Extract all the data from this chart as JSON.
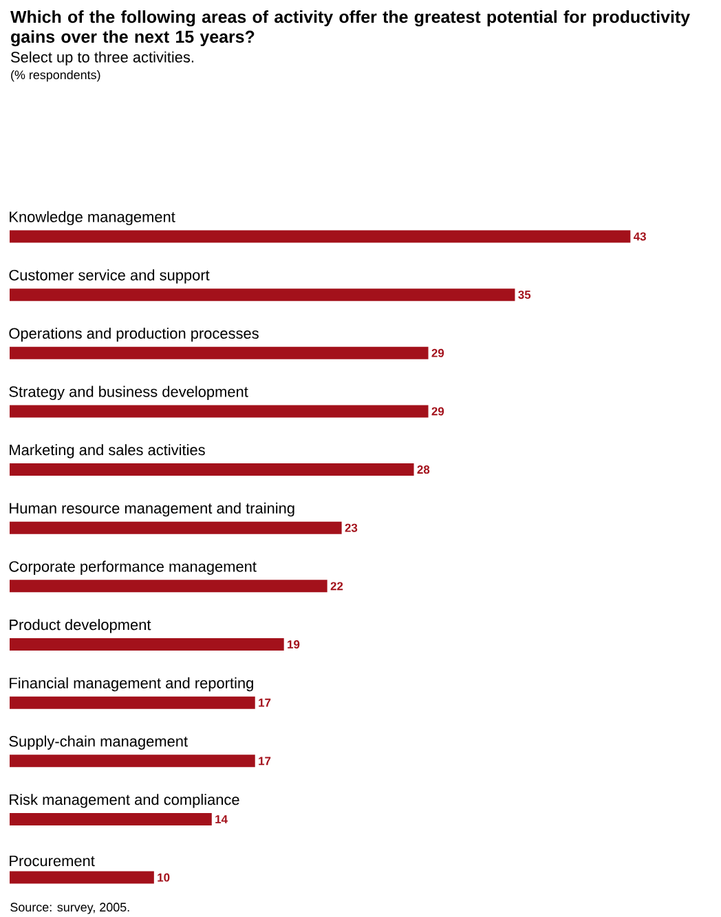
{
  "chart_data": {
    "type": "bar",
    "orientation": "horizontal",
    "title": "Which of the following areas of activity offer the greatest potential for productivity gains over the next 15 years?",
    "subtitle": "Select up to three activities.",
    "categories": [
      "Knowledge management",
      "Customer service and support",
      "Operations and production processes",
      "Strategy and business development",
      "Marketing and sales activities",
      "Human resource management and training",
      "Corporate performance management",
      "Product development",
      "Financial management and reporting",
      "Supply-chain management",
      "Risk management and compliance",
      "Procurement"
    ],
    "values": [
      43,
      35,
      29,
      29,
      28,
      23,
      22,
      19,
      17,
      17,
      14,
      10
    ],
    "color": "#a3111b",
    "data_labels": true,
    "annotations": [
      "(% respondents)",
      "Source: survey, 2005."
    ]
  }
}
